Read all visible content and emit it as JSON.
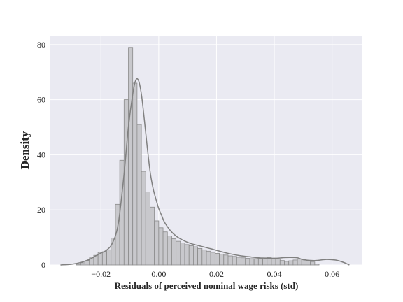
{
  "chart_data": {
    "type": "histogram",
    "title": "",
    "xlabel": "Residuals of perceived nominal wage risks (std)",
    "ylabel": "Density",
    "xlim": [
      -0.0375,
      0.0705
    ],
    "ylim": [
      0,
      83
    ],
    "grid": true,
    "legend": "none",
    "colors": {
      "background": "#eaeaf2",
      "grid": "#ffffff",
      "bar_fill": "#c8c8cc",
      "bar_edge": "#8a8a8a",
      "kde": "#808080"
    },
    "x_ticks": [
      {
        "value": -0.02,
        "label": "−0.02"
      },
      {
        "value": 0.0,
        "label": "0.00"
      },
      {
        "value": 0.02,
        "label": "0.02"
      },
      {
        "value": 0.04,
        "label": "0.04"
      },
      {
        "value": 0.06,
        "label": "0.06"
      }
    ],
    "y_ticks": [
      {
        "value": 0,
        "label": "0"
      },
      {
        "value": 20,
        "label": "20"
      },
      {
        "value": 40,
        "label": "40"
      },
      {
        "value": 60,
        "label": "60"
      },
      {
        "value": 80,
        "label": "80"
      }
    ],
    "bins": {
      "start": -0.0285,
      "width": 0.0015,
      "values": [
        0.3,
        0.8,
        1.6,
        2.6,
        3.5,
        4.6,
        4.8,
        5.5,
        9.8,
        22,
        38,
        60,
        79,
        66,
        51,
        34,
        26.5,
        21,
        16,
        13.5,
        12,
        10.5,
        9.5,
        8.6,
        8,
        7.4,
        7,
        6.6,
        6,
        5.5,
        5,
        4.6,
        4.2,
        3.9,
        3.6,
        3.3,
        3.1,
        2.8,
        2.6,
        2.4,
        2.3,
        2.3,
        2.4,
        2.6,
        2.7,
        2.5,
        2.2,
        1.6,
        1.3,
        1.5,
        1.8,
        2.2,
        2.0,
        1.6,
        1.1,
        0.4
      ]
    },
    "kde": {
      "x": [
        -0.034,
        -0.03,
        -0.027,
        -0.024,
        -0.022,
        -0.02,
        -0.018,
        -0.016,
        -0.014,
        -0.012,
        -0.0105,
        -0.009,
        -0.008,
        -0.007,
        -0.006,
        -0.005,
        -0.004,
        -0.003,
        -0.002,
        -0.001,
        0.0,
        0.001,
        0.002,
        0.004,
        0.006,
        0.008,
        0.01,
        0.012,
        0.015,
        0.018,
        0.02,
        0.024,
        0.028,
        0.032,
        0.036,
        0.04,
        0.044,
        0.048,
        0.05,
        0.054,
        0.058,
        0.061,
        0.063,
        0.065,
        0.066
      ],
      "y": [
        0,
        0.3,
        0.9,
        2.0,
        3.2,
        4.3,
        5.4,
        8,
        15,
        33,
        50,
        62,
        67,
        67,
        62,
        53,
        43,
        34,
        28,
        24,
        20.5,
        18,
        15.5,
        12.5,
        10.5,
        9.2,
        8.2,
        7.5,
        6.7,
        5.9,
        5.3,
        4.2,
        3.4,
        2.9,
        2.5,
        2.4,
        2.7,
        2.6,
        1.9,
        1.6,
        2.0,
        1.8,
        1.3,
        0.5,
        0
      ]
    }
  }
}
